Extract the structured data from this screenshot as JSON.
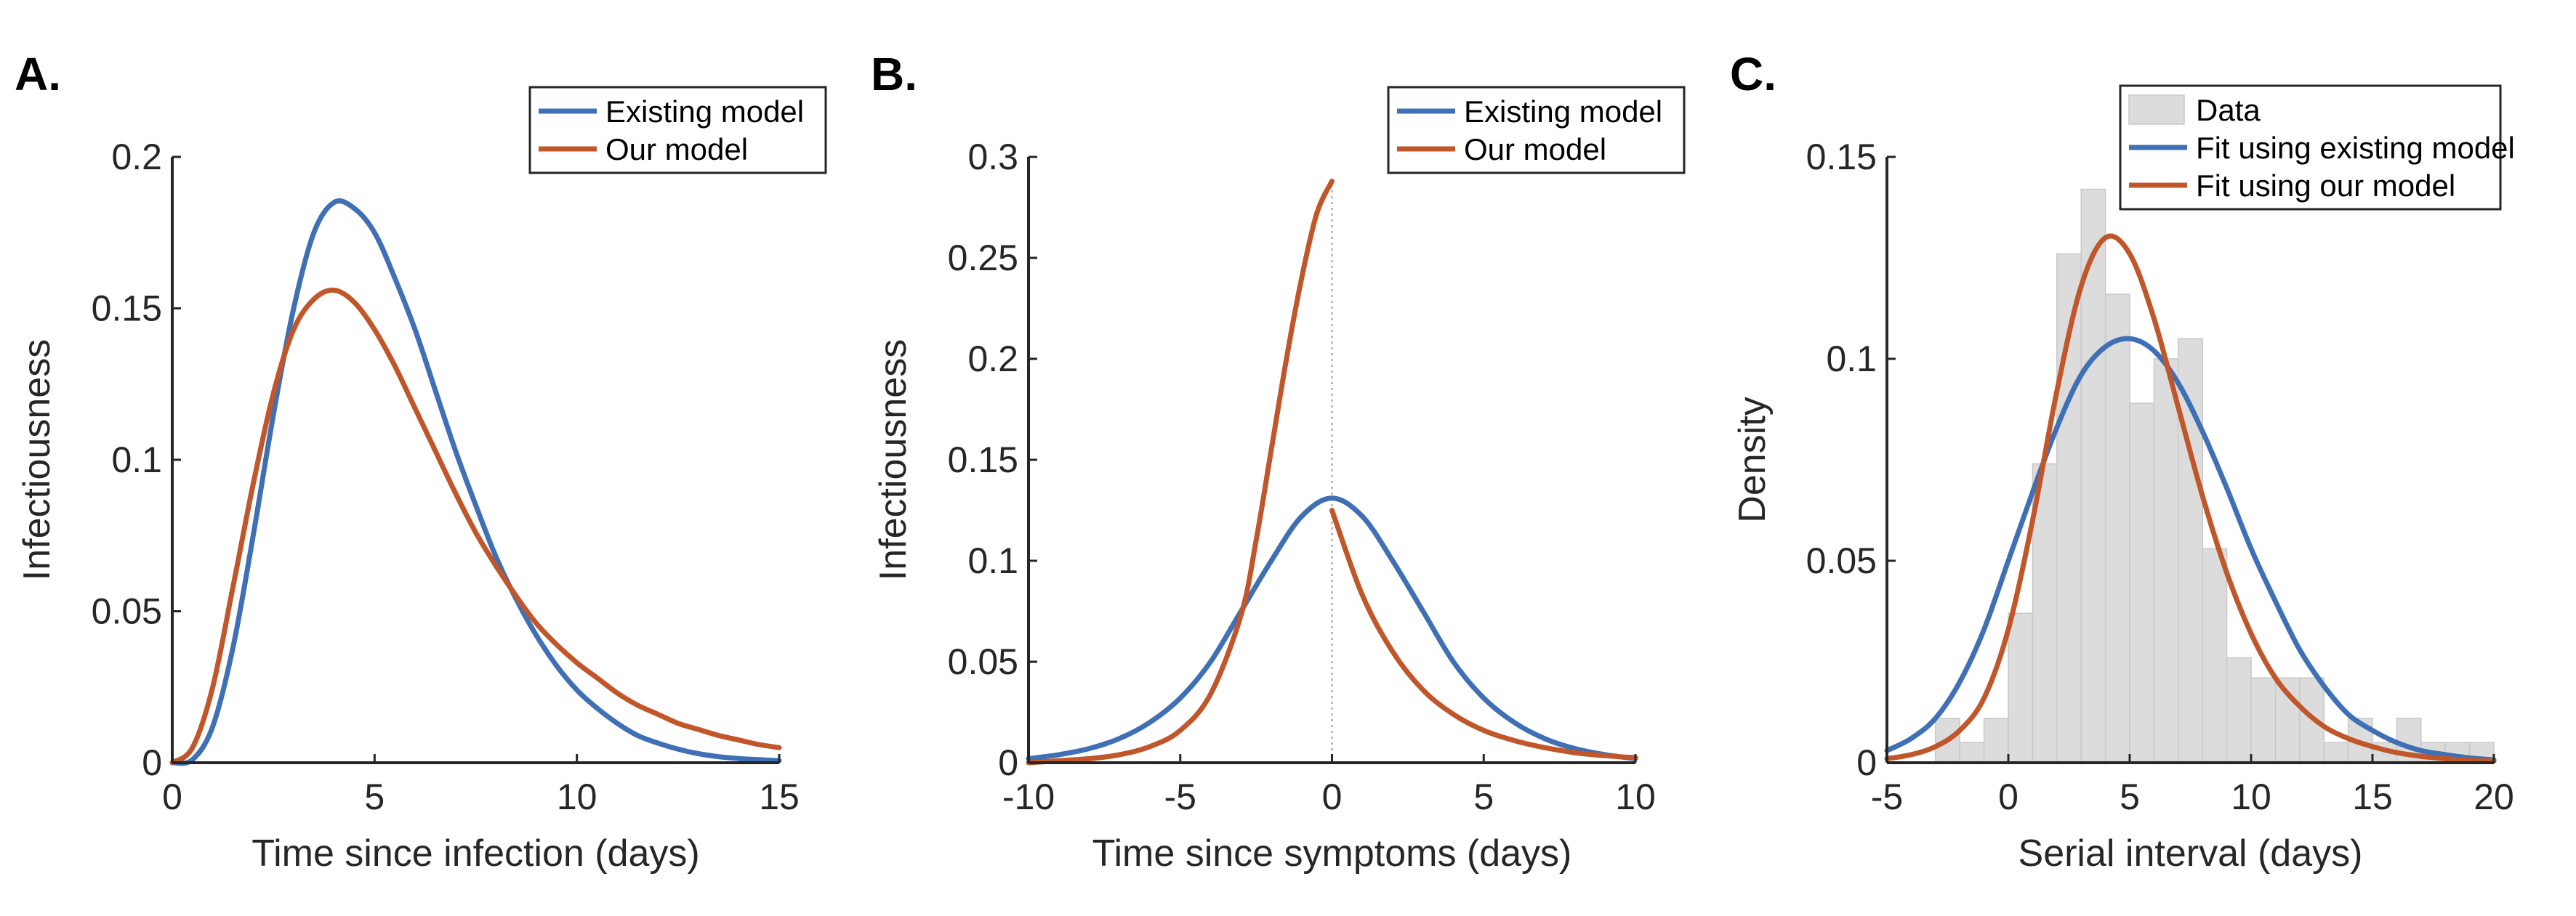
{
  "chart_data": [
    {
      "panel": "A.",
      "type": "line",
      "xlabel": "Time since infection (days)",
      "ylabel": "Infectiousness",
      "xlim": [
        0,
        15
      ],
      "ylim": [
        0,
        0.2
      ],
      "xticks": [
        "0",
        "5",
        "10",
        "15"
      ],
      "yticks": [
        "0",
        "0.05",
        "0.1",
        "0.15",
        "0.2"
      ],
      "legend_position": "top-right",
      "series": [
        {
          "name": "Existing model",
          "color": "#3f6fb5",
          "x": [
            0,
            0.5,
            1,
            1.5,
            2,
            2.5,
            3,
            3.5,
            4,
            4.5,
            5,
            5.5,
            6,
            6.5,
            7,
            7.5,
            8,
            8.5,
            9,
            9.5,
            10,
            10.5,
            11,
            11.5,
            12,
            12.5,
            13,
            13.5,
            14,
            14.5,
            15
          ],
          "y": [
            0,
            0.001,
            0.012,
            0.038,
            0.075,
            0.115,
            0.15,
            0.175,
            0.185,
            0.183,
            0.175,
            0.16,
            0.143,
            0.123,
            0.103,
            0.085,
            0.068,
            0.054,
            0.042,
            0.032,
            0.024,
            0.018,
            0.013,
            0.009,
            0.0065,
            0.0045,
            0.003,
            0.002,
            0.0014,
            0.001,
            0.0007
          ]
        },
        {
          "name": "Our model",
          "color": "#c0562a",
          "x": [
            0,
            0.5,
            1,
            1.5,
            2,
            2.5,
            3,
            3.5,
            4,
            4.5,
            5,
            5.5,
            6,
            6.5,
            7,
            7.5,
            8,
            8.5,
            9,
            9.5,
            10,
            10.5,
            11,
            11.5,
            12,
            12.5,
            13,
            13.5,
            14,
            14.5,
            15
          ],
          "y": [
            0,
            0.005,
            0.025,
            0.058,
            0.092,
            0.122,
            0.143,
            0.153,
            0.156,
            0.152,
            0.143,
            0.131,
            0.117,
            0.103,
            0.089,
            0.076,
            0.065,
            0.055,
            0.046,
            0.039,
            0.033,
            0.028,
            0.023,
            0.019,
            0.016,
            0.013,
            0.011,
            0.009,
            0.0075,
            0.006,
            0.005
          ]
        }
      ]
    },
    {
      "panel": "B.",
      "type": "line",
      "xlabel": "Time since symptoms (days)",
      "ylabel": "Infectiousness",
      "xlim": [
        -10,
        10
      ],
      "ylim": [
        0,
        0.3
      ],
      "xticks": [
        "-10",
        "-5",
        "0",
        "5",
        "10"
      ],
      "yticks": [
        "0",
        "0.05",
        "0.1",
        "0.15",
        "0.2",
        "0.25",
        "0.3"
      ],
      "legend_position": "top-right",
      "reference_line_x": 0,
      "series": [
        {
          "name": "Existing model",
          "color": "#3f6fb5",
          "x": [
            -10,
            -9,
            -8,
            -7,
            -6,
            -5,
            -4,
            -3,
            -2,
            -1,
            0,
            1,
            2,
            3,
            4,
            5,
            6,
            7,
            8,
            9,
            10
          ],
          "y": [
            0.002,
            0.004,
            0.007,
            0.012,
            0.02,
            0.032,
            0.05,
            0.075,
            0.1,
            0.122,
            0.131,
            0.122,
            0.1,
            0.075,
            0.05,
            0.032,
            0.02,
            0.012,
            0.007,
            0.004,
            0.002
          ]
        },
        {
          "name": "Our model",
          "color": "#c0562a",
          "x": [
            -10,
            -9,
            -8,
            -7,
            -6,
            -5,
            -4,
            -3,
            -2.5,
            -2,
            -1.5,
            -1,
            -0.5,
            0,
            0,
            1,
            2,
            3,
            4,
            5,
            6,
            7,
            8,
            9,
            10
          ],
          "y": [
            0,
            0.001,
            0.002,
            0.004,
            0.008,
            0.016,
            0.034,
            0.073,
            0.11,
            0.155,
            0.2,
            0.24,
            0.272,
            0.288,
            0.125,
            0.083,
            0.055,
            0.036,
            0.024,
            0.016,
            0.011,
            0.0075,
            0.005,
            0.0035,
            0.0025
          ]
        }
      ]
    },
    {
      "panel": "C.",
      "type": "line",
      "xlabel": "Serial interval (days)",
      "ylabel": "Density",
      "xlim": [
        -5,
        20
      ],
      "ylim": [
        0,
        0.15
      ],
      "xticks": [
        "-5",
        "0",
        "5",
        "10",
        "15",
        "20"
      ],
      "yticks": [
        "0",
        "0.05",
        "0.1",
        "0.15"
      ],
      "legend_position": "top-right",
      "histogram": {
        "name": "Data",
        "color": "#dcdcdc",
        "bin_width": 1,
        "bin_starts": [
          -3,
          -2,
          -1,
          0,
          1,
          2,
          3,
          4,
          5,
          6,
          7,
          8,
          9,
          10,
          11,
          12,
          13,
          14,
          15,
          16,
          17,
          18,
          19
        ],
        "values": [
          0.011,
          0.005,
          0.011,
          0.037,
          0.074,
          0.126,
          0.142,
          0.116,
          0.089,
          0.1,
          0.105,
          0.053,
          0.026,
          0.021,
          0.021,
          0.021,
          0.005,
          0.011,
          0.005,
          0.011,
          0.005,
          0.005,
          0.005
        ]
      },
      "series": [
        {
          "name": "Fit using existing model",
          "color": "#3f6fb5",
          "x": [
            -5,
            -4,
            -3,
            -2,
            -1,
            0,
            1,
            2,
            3,
            4,
            5,
            6,
            7,
            8,
            9,
            10,
            11,
            12,
            13,
            14,
            15,
            16,
            17,
            18,
            19,
            20
          ],
          "y": [
            0.003,
            0.006,
            0.011,
            0.02,
            0.033,
            0.05,
            0.067,
            0.083,
            0.096,
            0.103,
            0.105,
            0.102,
            0.094,
            0.082,
            0.068,
            0.053,
            0.04,
            0.028,
            0.019,
            0.012,
            0.008,
            0.005,
            0.003,
            0.002,
            0.0012,
            0.0007
          ]
        },
        {
          "name": "Fit using our model",
          "color": "#c0562a",
          "x": [
            -5,
            -4,
            -3,
            -2,
            -1,
            0,
            1,
            2,
            3,
            4,
            5,
            6,
            7,
            8,
            9,
            10,
            11,
            12,
            13,
            14,
            15,
            16,
            17,
            18,
            19,
            20
          ],
          "y": [
            0.001,
            0.002,
            0.004,
            0.008,
            0.016,
            0.033,
            0.06,
            0.092,
            0.118,
            0.13,
            0.126,
            0.11,
            0.088,
            0.066,
            0.047,
            0.032,
            0.021,
            0.014,
            0.009,
            0.006,
            0.004,
            0.0025,
            0.0016,
            0.001,
            0.0006,
            0.0004
          ]
        }
      ]
    }
  ]
}
